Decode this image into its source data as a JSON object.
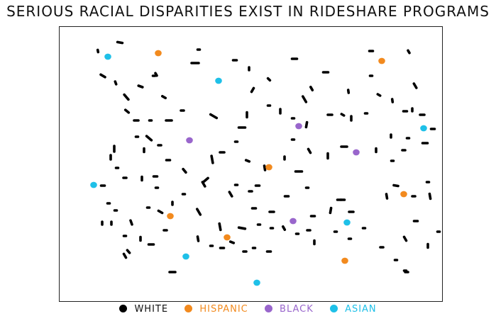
{
  "title": "SERIOUS RACIAL DISPARITIES EXIST IN RIDESHARE PROGRAMS",
  "legend": [
    {
      "label": "WHITE",
      "color": "#000000"
    },
    {
      "label": "HISPANIC",
      "color": "#f28a1e"
    },
    {
      "label": "BLACK",
      "color": "#9966cc"
    },
    {
      "label": "ASIAN",
      "color": "#1ec0e8"
    }
  ]
}
